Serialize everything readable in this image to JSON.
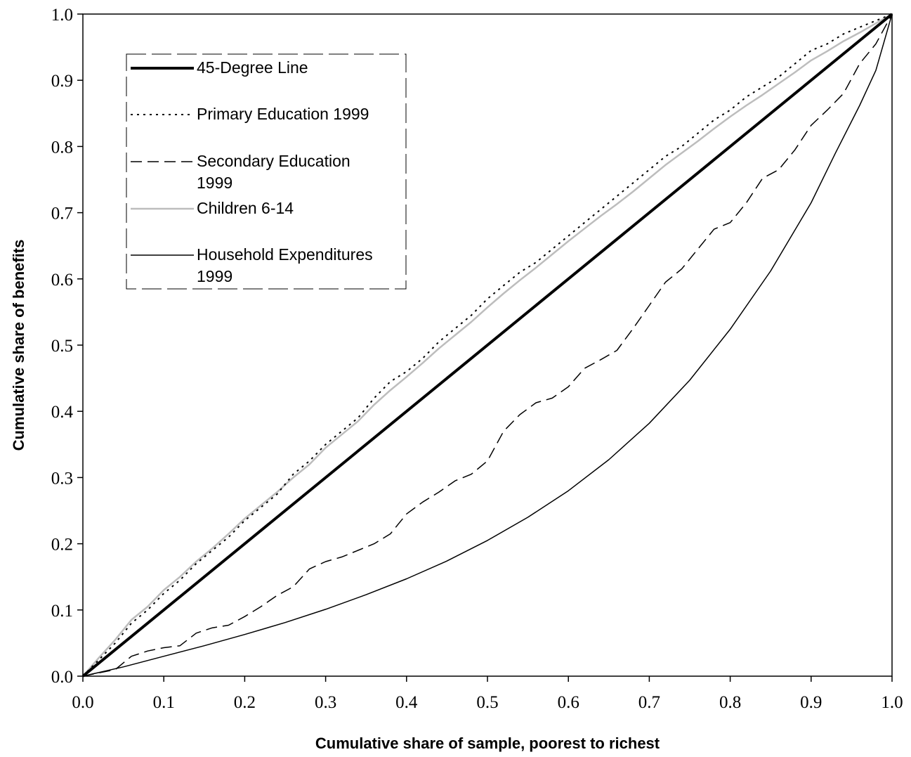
{
  "chart_data": {
    "type": "line",
    "title": "",
    "xlabel": "Cumulative share of sample, poorest to richest",
    "ylabel": "Cumulative share of benefits",
    "xlim": [
      0,
      1
    ],
    "ylim": [
      0,
      1
    ],
    "x_ticks": [
      "0.0",
      "0.1",
      "0.2",
      "0.3",
      "0.4",
      "0.5",
      "0.6",
      "0.7",
      "0.8",
      "0.9",
      "1.0"
    ],
    "y_ticks": [
      "0.0",
      "0.1",
      "0.2",
      "0.3",
      "0.4",
      "0.5",
      "0.6",
      "0.7",
      "0.8",
      "0.9",
      "1.0"
    ],
    "grid": false,
    "legend_position": "top-left",
    "series": [
      {
        "name": "45-Degree Line",
        "style": "thick-solid",
        "color": "#000000",
        "x": [
          0,
          1
        ],
        "y": [
          0,
          1
        ]
      },
      {
        "name": "Primary Education 1999",
        "style": "dotted",
        "color": "#000000",
        "x": [
          0,
          0.02,
          0.04,
          0.06,
          0.08,
          0.1,
          0.12,
          0.14,
          0.16,
          0.18,
          0.2,
          0.22,
          0.24,
          0.26,
          0.28,
          0.3,
          0.32,
          0.34,
          0.36,
          0.38,
          0.4,
          0.42,
          0.44,
          0.46,
          0.48,
          0.5,
          0.52,
          0.54,
          0.56,
          0.58,
          0.6,
          0.62,
          0.64,
          0.66,
          0.68,
          0.7,
          0.72,
          0.74,
          0.76,
          0.78,
          0.8,
          0.82,
          0.84,
          0.86,
          0.88,
          0.9,
          0.92,
          0.94,
          0.96,
          0.98,
          1.0
        ],
        "y": [
          0,
          0.025,
          0.05,
          0.08,
          0.1,
          0.125,
          0.145,
          0.17,
          0.19,
          0.21,
          0.235,
          0.255,
          0.275,
          0.305,
          0.325,
          0.35,
          0.37,
          0.39,
          0.42,
          0.445,
          0.46,
          0.48,
          0.505,
          0.525,
          0.545,
          0.57,
          0.59,
          0.61,
          0.625,
          0.645,
          0.665,
          0.685,
          0.705,
          0.725,
          0.745,
          0.765,
          0.785,
          0.8,
          0.82,
          0.84,
          0.855,
          0.875,
          0.89,
          0.905,
          0.925,
          0.945,
          0.955,
          0.97,
          0.98,
          0.99,
          1.0
        ]
      },
      {
        "name": "Secondary Education 1999",
        "style": "dashed",
        "color": "#000000",
        "x": [
          0,
          0.02,
          0.04,
          0.06,
          0.08,
          0.1,
          0.12,
          0.14,
          0.16,
          0.18,
          0.2,
          0.22,
          0.24,
          0.26,
          0.28,
          0.3,
          0.32,
          0.34,
          0.36,
          0.38,
          0.4,
          0.42,
          0.44,
          0.46,
          0.48,
          0.5,
          0.52,
          0.54,
          0.56,
          0.58,
          0.6,
          0.62,
          0.64,
          0.66,
          0.68,
          0.7,
          0.72,
          0.74,
          0.76,
          0.78,
          0.8,
          0.82,
          0.84,
          0.86,
          0.88,
          0.9,
          0.92,
          0.94,
          0.96,
          0.98,
          1.0
        ],
        "y": [
          0,
          0.005,
          0.01,
          0.03,
          0.038,
          0.043,
          0.046,
          0.065,
          0.073,
          0.077,
          0.09,
          0.105,
          0.122,
          0.135,
          0.162,
          0.173,
          0.18,
          0.19,
          0.2,
          0.215,
          0.245,
          0.263,
          0.278,
          0.295,
          0.305,
          0.325,
          0.37,
          0.395,
          0.413,
          0.42,
          0.437,
          0.465,
          0.478,
          0.492,
          0.525,
          0.56,
          0.595,
          0.615,
          0.645,
          0.675,
          0.685,
          0.715,
          0.752,
          0.765,
          0.795,
          0.832,
          0.855,
          0.88,
          0.925,
          0.955,
          1.0
        ]
      },
      {
        "name": "Children 6-14",
        "style": "solid-light-gray",
        "color": "#bdbdbd",
        "x": [
          0,
          0.02,
          0.04,
          0.06,
          0.08,
          0.1,
          0.12,
          0.14,
          0.16,
          0.18,
          0.2,
          0.22,
          0.24,
          0.26,
          0.28,
          0.3,
          0.32,
          0.34,
          0.36,
          0.38,
          0.4,
          0.42,
          0.44,
          0.46,
          0.48,
          0.5,
          0.52,
          0.54,
          0.56,
          0.58,
          0.6,
          0.62,
          0.64,
          0.66,
          0.68,
          0.7,
          0.72,
          0.74,
          0.76,
          0.78,
          0.8,
          0.82,
          0.84,
          0.86,
          0.88,
          0.9,
          0.92,
          0.94,
          0.96,
          0.98,
          1.0
        ],
        "y": [
          0,
          0.028,
          0.055,
          0.085,
          0.105,
          0.13,
          0.15,
          0.173,
          0.193,
          0.215,
          0.238,
          0.258,
          0.278,
          0.3,
          0.32,
          0.345,
          0.365,
          0.385,
          0.41,
          0.432,
          0.452,
          0.473,
          0.495,
          0.515,
          0.535,
          0.557,
          0.578,
          0.598,
          0.617,
          0.637,
          0.657,
          0.676,
          0.695,
          0.713,
          0.732,
          0.752,
          0.772,
          0.79,
          0.808,
          0.827,
          0.845,
          0.862,
          0.878,
          0.895,
          0.912,
          0.93,
          0.944,
          0.959,
          0.972,
          0.986,
          1.0
        ]
      },
      {
        "name": "Household Expenditures 1999",
        "style": "thin-solid",
        "color": "#000000",
        "x": [
          0,
          0.05,
          0.1,
          0.15,
          0.2,
          0.25,
          0.3,
          0.35,
          0.4,
          0.45,
          0.5,
          0.55,
          0.6,
          0.65,
          0.7,
          0.75,
          0.8,
          0.85,
          0.9,
          0.93,
          0.96,
          0.98,
          1.0
        ],
        "y": [
          0,
          0.014,
          0.03,
          0.046,
          0.063,
          0.081,
          0.101,
          0.123,
          0.147,
          0.174,
          0.205,
          0.24,
          0.28,
          0.327,
          0.382,
          0.447,
          0.524,
          0.612,
          0.715,
          0.79,
          0.862,
          0.915,
          1.0
        ]
      }
    ]
  }
}
